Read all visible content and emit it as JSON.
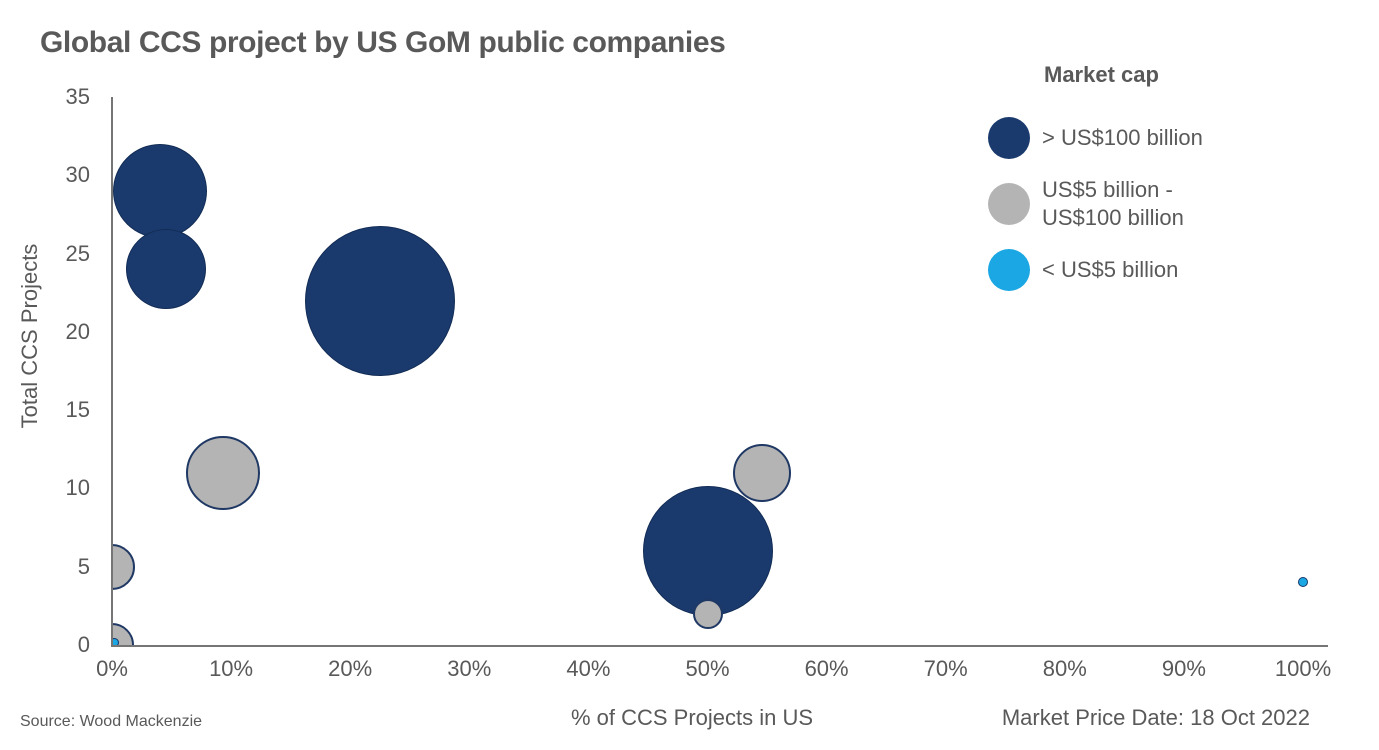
{
  "page": {
    "title": "Global CCS project by US GoM public companies",
    "source_note": "Source: Wood Mackenzie",
    "market_price_date": "Market Price Date: 18 Oct 2022"
  },
  "legend": {
    "title": "Market cap",
    "items": [
      {
        "label": "> US$100 billion",
        "color": "#1a3a6e"
      },
      {
        "label": "US$5 billion -\nUS$100 billion",
        "color": "#b4b4b4"
      },
      {
        "label": "< US$5 billion",
        "color": "#1ba7e3"
      }
    ]
  },
  "chart_data": {
    "type": "scatter",
    "subtype": "bubble",
    "title": "Global CCS project by US GoM public companies",
    "xlabel": "% of CCS Projects in US",
    "ylabel": "Total CCS Projects",
    "xlim": [
      0,
      100
    ],
    "ylim": [
      0,
      35
    ],
    "x_tick_labels": [
      "0%",
      "10%",
      "20%",
      "30%",
      "40%",
      "50%",
      "60%",
      "70%",
      "80%",
      "90%",
      "100%"
    ],
    "y_ticks": [
      0,
      5,
      10,
      15,
      20,
      25,
      30,
      35
    ],
    "grid": false,
    "legend_position": "top-right",
    "series": [
      {
        "name": "> US$100 billion",
        "color": "#1a3a6e",
        "border_color": "#122c55",
        "border_width": 1,
        "points": [
          {
            "x": 4,
            "y": 29,
            "r": 47
          },
          {
            "x": 4.5,
            "y": 24,
            "r": 40
          },
          {
            "x": 22.5,
            "y": 22,
            "r": 75
          },
          {
            "x": 50,
            "y": 6,
            "r": 65
          }
        ]
      },
      {
        "name": "US$5 billion - US$100 billion",
        "color": "#b4b4b4",
        "border_color": "#1f3864",
        "border_width": 2,
        "points": [
          {
            "x": 0,
            "y": 5,
            "r": 23
          },
          {
            "x": 0,
            "y": 0,
            "r": 22
          },
          {
            "x": 9.3,
            "y": 11,
            "r": 37
          },
          {
            "x": 50,
            "y": 2,
            "r": 15
          },
          {
            "x": 54.6,
            "y": 11,
            "r": 29
          }
        ]
      },
      {
        "name": "< US$5 billion",
        "color": "#1ba7e3",
        "border_color": "#17386b",
        "border_width": 1.5,
        "points": [
          {
            "x": 0.2,
            "y": 0.15,
            "r": 4.5
          },
          {
            "x": 100,
            "y": 4,
            "r": 5
          }
        ]
      }
    ]
  }
}
